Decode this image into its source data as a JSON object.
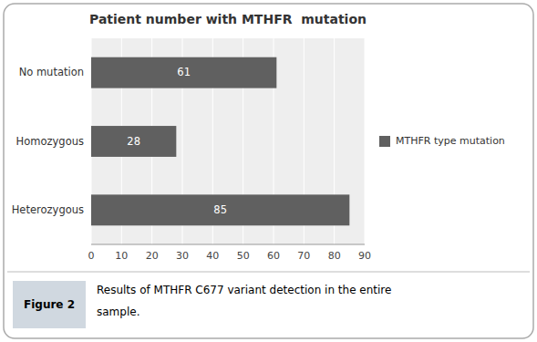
{
  "chart_data": {
    "type": "bar",
    "orientation": "horizontal",
    "title": "Patient number with MTHFR  mutation",
    "categories": [
      "Heterozygous",
      "Homozygous",
      "No mutation"
    ],
    "series": [
      {
        "name": "MTHFR type mutation",
        "color": "#606060",
        "values": [
          85,
          28,
          61
        ]
      }
    ],
    "xlim": [
      0,
      90
    ],
    "xticks": [
      0,
      10,
      20,
      30,
      40,
      50,
      60,
      70,
      80,
      90
    ],
    "grid": true,
    "legend": "right",
    "data_labels": true,
    "annotations": [
      "Figure 2",
      "Results of MTHFR C677 variant detection in the entire",
      "sample."
    ]
  }
}
